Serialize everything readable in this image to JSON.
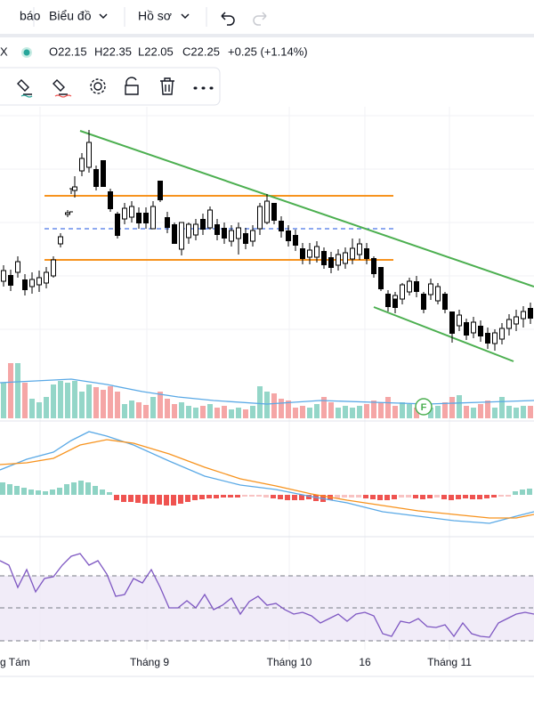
{
  "toolbar": {
    "items": [
      "báo",
      "Biểu đồ",
      "Hồ sơ"
    ]
  },
  "legend": {
    "symbol": "X",
    "open": "O22.15",
    "high": "H22.35",
    "low": "L22.05",
    "close": "C22.25",
    "change": "+0.25 (+1.14%)"
  },
  "marker": "F",
  "time_axis": {
    "labels": [
      "g Tám",
      "Tháng 9",
      "Tháng 10",
      "16",
      "Tháng 11"
    ]
  }
}
